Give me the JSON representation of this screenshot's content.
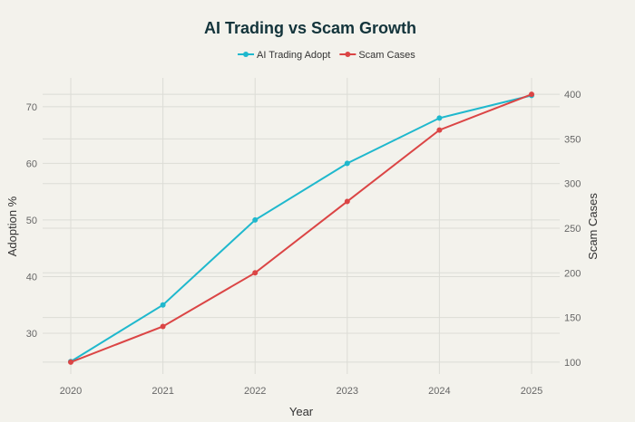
{
  "chart_data": {
    "type": "line",
    "title": "AI Trading vs Scam Growth",
    "xlabel": "Year",
    "ylabel": "Adoption %",
    "y2label": "Scam Cases",
    "x": [
      2020,
      2021,
      2022,
      2023,
      2024,
      2025
    ],
    "xticks": [
      "2020",
      "2021",
      "2022",
      "2023",
      "2024",
      "2025"
    ],
    "yticks": [
      "30",
      "40",
      "50",
      "60",
      "70"
    ],
    "y2ticks": [
      "100",
      "150",
      "200",
      "250",
      "300",
      "350",
      "400"
    ],
    "ylim": [
      22.8,
      75.1
    ],
    "y2lim": [
      86.7,
      418.4
    ],
    "legend_placement": "top-center",
    "series": [
      {
        "name": "AI Trading Adopt",
        "axis": "left",
        "color": "#1fb8cd",
        "values": [
          25,
          35,
          50,
          60,
          68,
          72
        ]
      },
      {
        "name": "Scam Cases",
        "axis": "right",
        "color": "#db4545",
        "values": [
          100,
          140,
          200,
          280,
          360,
          400
        ]
      }
    ]
  }
}
